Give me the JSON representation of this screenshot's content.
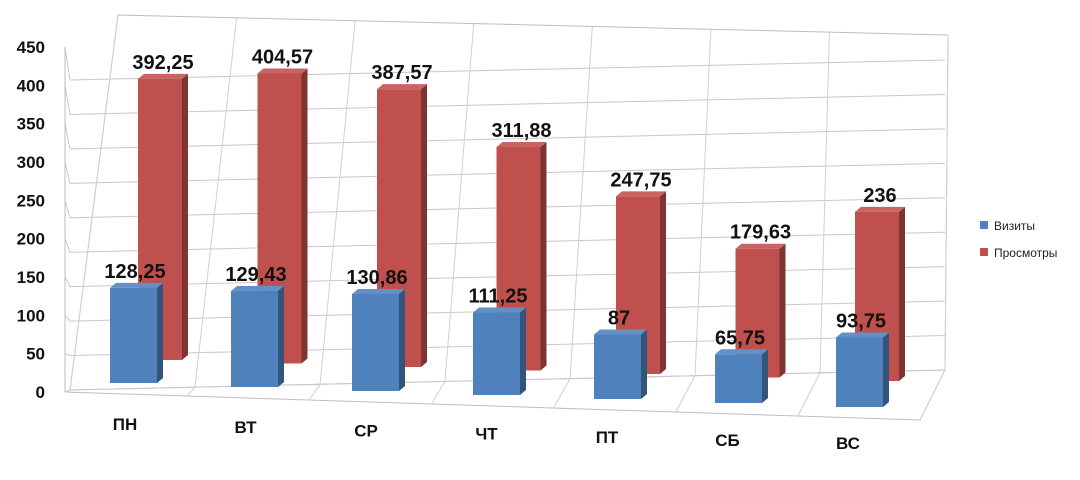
{
  "chart_data": {
    "type": "bar",
    "categories": [
      "ПН",
      "ВТ",
      "СР",
      "ЧТ",
      "ПТ",
      "СБ",
      "ВС"
    ],
    "series": [
      {
        "name": "Визиты",
        "values": [
          128.25,
          129.43,
          130.86,
          111.25,
          87,
          65.75,
          93.75
        ],
        "labels": [
          "128,25",
          "129,43",
          "130,86",
          "111,25",
          "87",
          "65,75",
          "93,75"
        ],
        "color": "#4F81BD"
      },
      {
        "name": "Просмотры",
        "values": [
          392.25,
          404.57,
          387.57,
          311.88,
          247.75,
          179.63,
          236
        ],
        "labels": [
          "392,25",
          "404,57",
          "387,57",
          "311,88",
          "247,75",
          "179,63",
          "236"
        ],
        "color": "#C0504D"
      }
    ],
    "yticks": [
      "0",
      "50",
      "100",
      "150",
      "200",
      "250",
      "300",
      "350",
      "400",
      "450"
    ],
    "ylim": [
      0,
      450
    ],
    "grid": true,
    "legend": "right",
    "view": "3d-clustered-column"
  }
}
